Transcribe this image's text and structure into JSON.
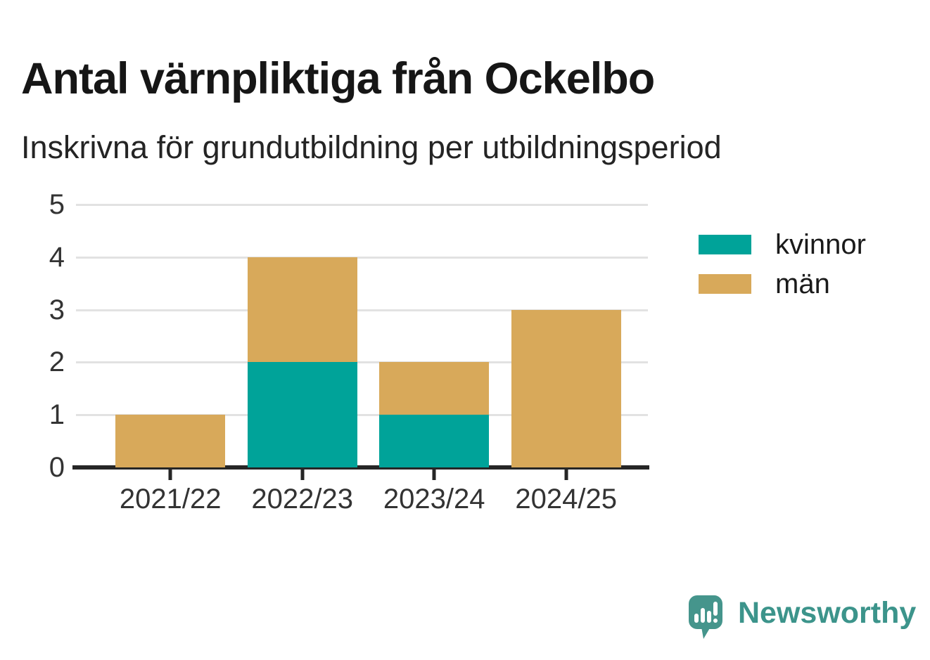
{
  "title": "Antal värnpliktiga från Ockelbo",
  "subtitle": "Inskrivna för grundutbildning per utbildningsperiod",
  "branding": {
    "name": "Newsworthy"
  },
  "colors": {
    "kvinnor": "#00a399",
    "man": "#d8a95a",
    "brand": "#3c948b",
    "grid": "#e2e2e2",
    "axis": "#262626"
  },
  "chart_data": {
    "type": "bar",
    "stacked": true,
    "title": "Antal värnpliktiga från Ockelbo",
    "subtitle": "Inskrivna för grundutbildning per utbildningsperiod",
    "categories": [
      "2021/22",
      "2022/23",
      "2023/24",
      "2024/25"
    ],
    "series": [
      {
        "name": "kvinnor",
        "color": "#00a399",
        "values": [
          0,
          2,
          1,
          0
        ]
      },
      {
        "name": "män",
        "color": "#d8a95a",
        "values": [
          1,
          2,
          1,
          3
        ]
      }
    ],
    "totals": [
      1,
      4,
      2,
      3
    ],
    "xlabel": "",
    "ylabel": "",
    "ylim": [
      0,
      5
    ],
    "yticks": [
      0,
      1,
      2,
      3,
      4,
      5
    ],
    "grid": true,
    "legend_position": "right"
  }
}
